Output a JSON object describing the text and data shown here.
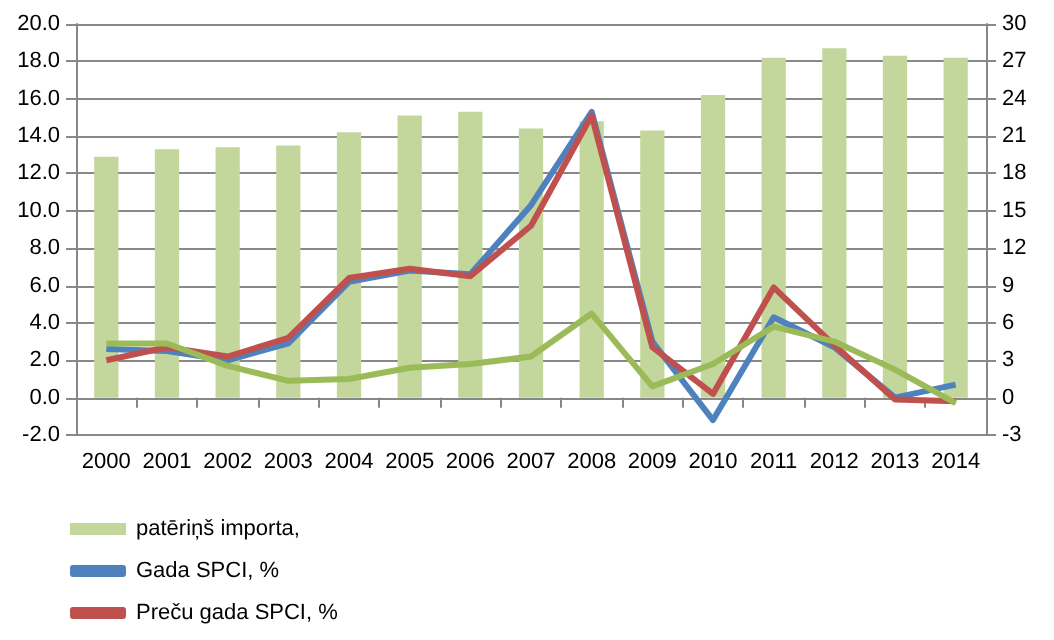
{
  "chart_data": {
    "type": "bar",
    "categories": [
      "2000",
      "2001",
      "2002",
      "2003",
      "2004",
      "2005",
      "2006",
      "2007",
      "2008",
      "2009",
      "2010",
      "2011",
      "2012",
      "2013",
      "2014"
    ],
    "series": [
      {
        "name": "patēriņš importa,",
        "color": "#c3d69b",
        "values": [
          12.9,
          13.3,
          13.4,
          13.5,
          14.2,
          15.1,
          15.3,
          14.4,
          14.8,
          14.3,
          16.2,
          18.2,
          18.7,
          18.3,
          18.2
        ]
      },
      {
        "name": "Gada SPCI, %",
        "type": "line",
        "color": "#4f81bd",
        "values": [
          2.6,
          2.5,
          2.0,
          2.9,
          6.2,
          6.8,
          6.6,
          10.3,
          15.3,
          3.0,
          -1.2,
          4.3,
          2.7,
          0.0,
          0.7
        ]
      },
      {
        "name": "Preču gada SPCI, %",
        "type": "line",
        "color": "#c0504d",
        "values": [
          2.0,
          2.7,
          2.2,
          3.2,
          6.4,
          6.9,
          6.5,
          9.2,
          15.1,
          2.7,
          0.2,
          5.9,
          2.8,
          -0.1,
          -0.2
        ]
      },
      {
        "type": "line",
        "color": "#9bbb59",
        "values": [
          2.9,
          2.9,
          1.7,
          0.9,
          1.0,
          1.6,
          1.8,
          2.2,
          4.5,
          0.6,
          1.8,
          3.8,
          3.0,
          1.5,
          -0.3
        ]
      }
    ],
    "ylim": [
      -2,
      20
    ],
    "yticks": [
      {
        "value": -2,
        "label": "-2.0"
      },
      {
        "value": 0,
        "label": "0.0"
      },
      {
        "value": 2,
        "label": "2.0"
      },
      {
        "value": 4,
        "label": "4.0"
      },
      {
        "value": 6,
        "label": "6.0"
      },
      {
        "value": 8,
        "label": "8.0"
      },
      {
        "value": 10,
        "label": "10.0"
      },
      {
        "value": 12,
        "label": "12.0"
      },
      {
        "value": 14,
        "label": "14.0"
      },
      {
        "value": 16,
        "label": "16.0"
      },
      {
        "value": 18,
        "label": "18.0"
      },
      {
        "value": 20,
        "label": "20.0"
      }
    ],
    "y2lim": [
      -3,
      30
    ],
    "y2ticks": [
      -3,
      0,
      3,
      6,
      9,
      12,
      15,
      18,
      21,
      24,
      27,
      30
    ],
    "grid": "y",
    "legend": "bottom left",
    "marker": "none",
    "line_style": "solid"
  }
}
